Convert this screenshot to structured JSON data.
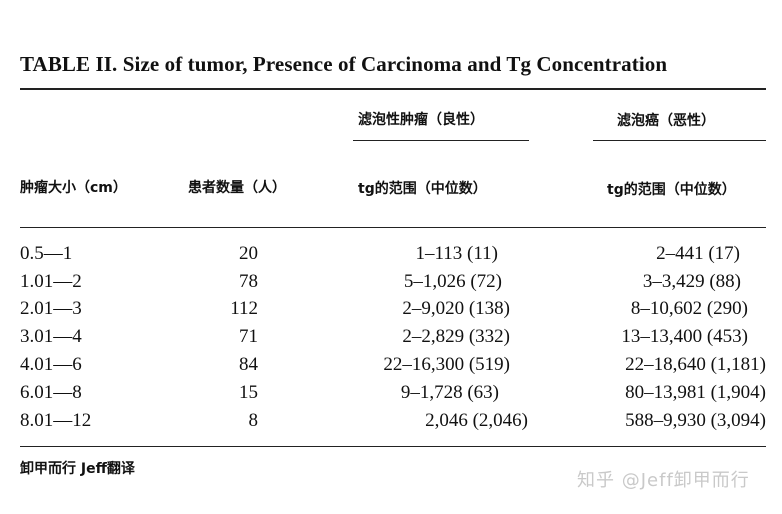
{
  "table": {
    "title": "TABLE II. Size of tumor, Presence of Carcinoma and Tg Concentration",
    "group_headers": [
      "滤泡性肿瘤（良性）",
      "滤泡癌（恶性）"
    ],
    "column_headers": [
      "肿瘤大小（cm）",
      "患者数量（人）",
      "tg的范围（中位数）",
      "tg的范围（中位数）"
    ],
    "rows": [
      [
        "0.5—1",
        "20",
        "1–113 (11)",
        "2–441 (17)"
      ],
      [
        "1.01—2",
        "78",
        "5–1,026 (72)",
        "3–3,429 (88)"
      ],
      [
        "2.01—3",
        "112",
        "2–9,020 (138)",
        "8–10,602 (290)"
      ],
      [
        "3.01—4",
        "71",
        "2–2,829 (332)",
        "13–13,400 (453)"
      ],
      [
        "4.01—6",
        "84",
        "22–16,300 (519)",
        "22–18,640 (1,181)"
      ],
      [
        "6.01—8",
        "15",
        "9–1,728 (63)",
        "80–13,981 (1,904)"
      ],
      [
        "8.01—12",
        "8",
        "2,046 (2,046)",
        "588–9,930 (3,094)"
      ]
    ]
  },
  "footer": {
    "translator_note": "卸甲而行 Jeff翻译"
  },
  "watermark": {
    "text": "知乎 @Jeff卸甲而行"
  }
}
